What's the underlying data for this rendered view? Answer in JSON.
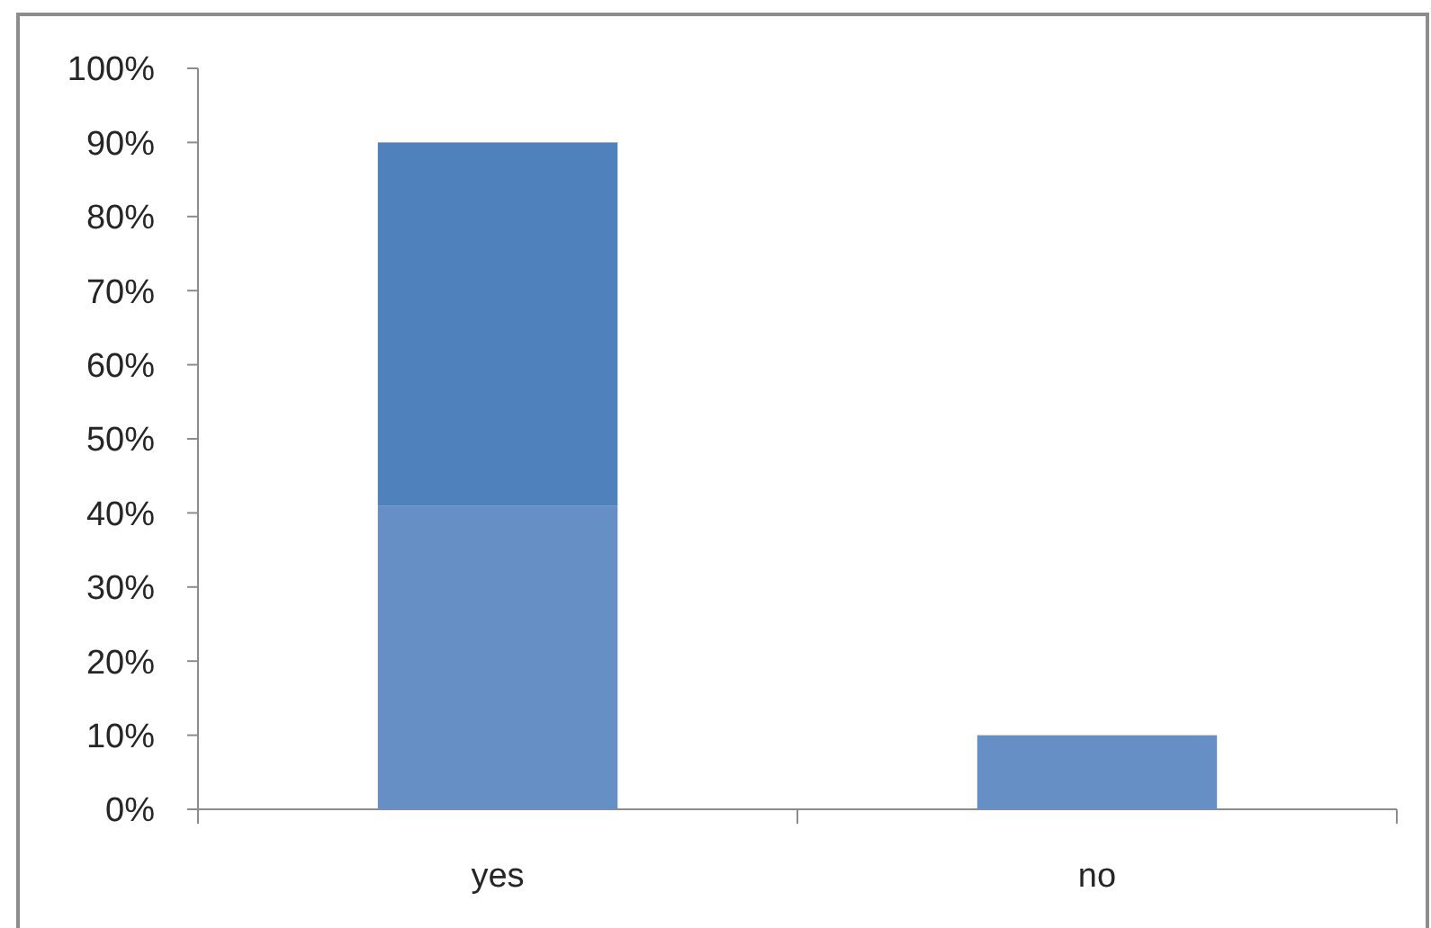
{
  "chart_data": {
    "type": "bar",
    "stacked": true,
    "categories": [
      "yes",
      "no"
    ],
    "series": [
      {
        "color": "#6690c5",
        "values": [
          41,
          10
        ]
      },
      {
        "color": "#4f81bd",
        "values": [
          49,
          null
        ]
      }
    ],
    "ylim": [
      0,
      100
    ],
    "yticks": [
      {
        "value": 0,
        "label": "0%"
      },
      {
        "value": 10,
        "label": "10%"
      },
      {
        "value": 20,
        "label": "20%"
      },
      {
        "value": 30,
        "label": "30%"
      },
      {
        "value": 40,
        "label": "40%"
      },
      {
        "value": 50,
        "label": "50%"
      },
      {
        "value": 60,
        "label": "60%"
      },
      {
        "value": 70,
        "label": "70%"
      },
      {
        "value": 80,
        "label": "80%"
      },
      {
        "value": 90,
        "label": "90%"
      },
      {
        "value": 100,
        "label": "100%"
      }
    ],
    "grid": false
  }
}
